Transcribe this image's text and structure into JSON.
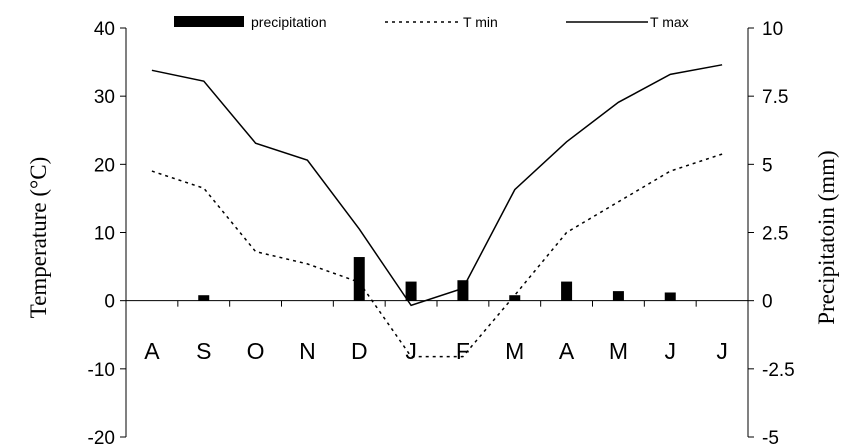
{
  "chart_data": {
    "type": "line",
    "title": "",
    "categories": [
      "A",
      "S",
      "O",
      "N",
      "D",
      "J",
      "F",
      "M",
      "A",
      "M",
      "J",
      "J"
    ],
    "y_left": {
      "label": "Temperature (°C)",
      "range": [
        -20,
        40
      ],
      "ticks": [
        "40",
        "30",
        "20",
        "10",
        "0",
        "-10",
        "-20"
      ]
    },
    "y_right": {
      "label": "Precipitatoin (mm)",
      "range": [
        -5,
        10
      ],
      "ticks": [
        "10",
        "7.5",
        "5",
        "2.5",
        "0",
        "-2.5",
        "-5"
      ]
    },
    "grid": false,
    "legend_position": "top",
    "series": [
      {
        "name": "precipitation",
        "type": "bar",
        "axis": "right",
        "color": "#000000",
        "values": [
          0,
          0.2,
          0,
          0,
          1.6,
          0.7,
          0.75,
          0.2,
          0.7,
          0.35,
          0.3,
          0
        ]
      },
      {
        "name": "T min",
        "type": "line",
        "style": "dotted",
        "axis": "left",
        "color": "#000000",
        "values": [
          19,
          16.5,
          7.2,
          5.4,
          2.7,
          -8.2,
          -8.2,
          0.8,
          10,
          14.5,
          19,
          21.5
        ]
      },
      {
        "name": "T max",
        "type": "line",
        "style": "solid",
        "axis": "left",
        "color": "#000000",
        "values": [
          33.8,
          32.2,
          23.1,
          20.6,
          10.5,
          -0.7,
          1.8,
          16.3,
          23.3,
          29.1,
          33.2,
          34.6
        ]
      }
    ]
  }
}
